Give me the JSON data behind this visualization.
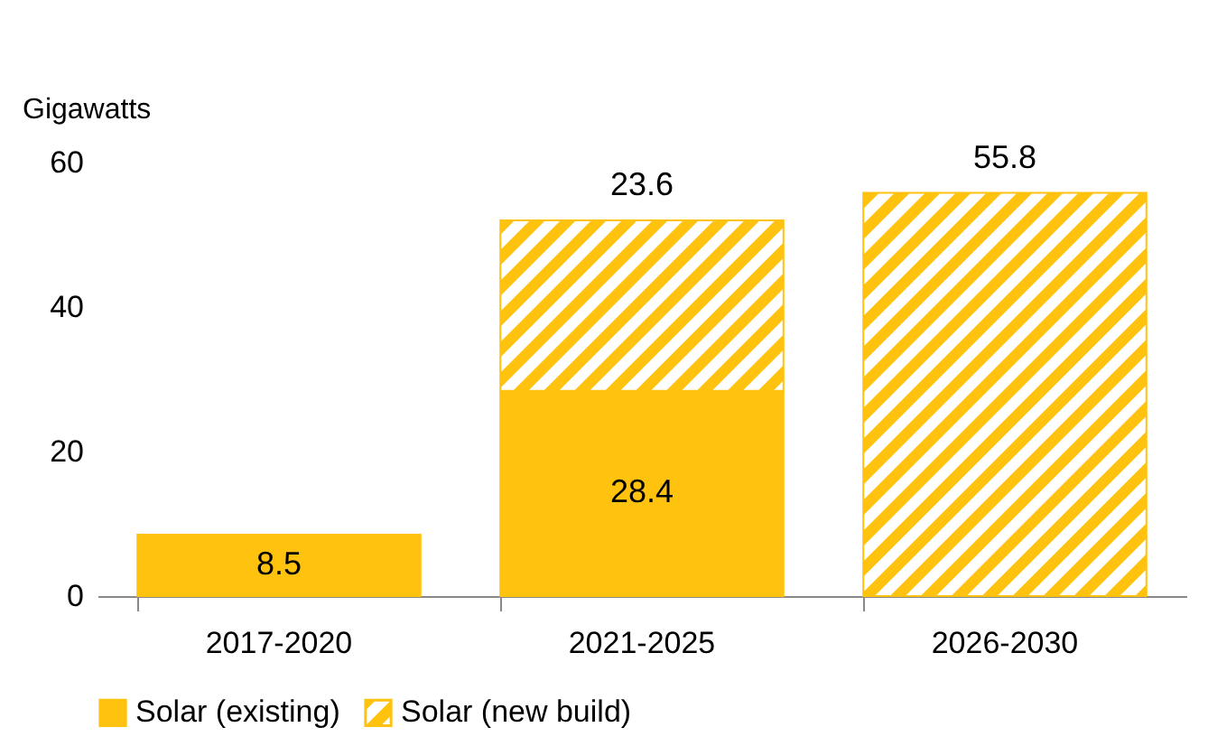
{
  "chart_data": {
    "type": "bar",
    "stacked": true,
    "ylabel": "Gigawatts",
    "categories": [
      "2017-2020",
      "2021-2025",
      "2026-2030"
    ],
    "series": [
      {
        "name": "Solar (existing)",
        "color": "#ffc20e",
        "values": [
          8.5,
          28.4,
          null
        ]
      },
      {
        "name": "Solar (new build)",
        "color": "#ffc20e",
        "values": [
          null,
          23.6,
          55.8
        ]
      }
    ],
    "ylim": [
      0,
      60
    ],
    "yticks": [
      0,
      20,
      40,
      60
    ],
    "grid": false,
    "legend": "bottom",
    "data_labels": true
  }
}
